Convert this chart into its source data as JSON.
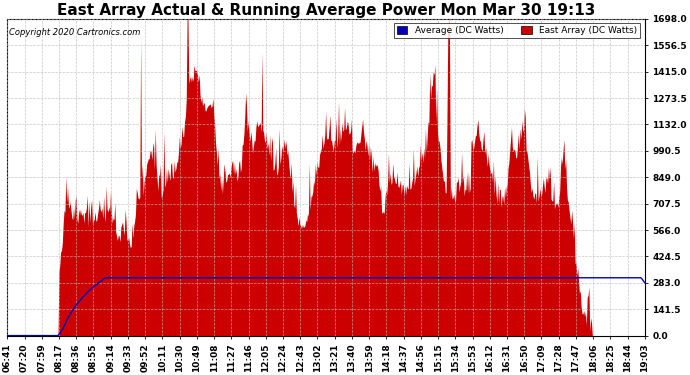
{
  "title": "East Array Actual & Running Average Power Mon Mar 30 19:13",
  "copyright": "Copyright 2020 Cartronics.com",
  "legend_labels": [
    "Average (DC Watts)",
    "East Array (DC Watts)"
  ],
  "legend_colors": [
    "#0000bb",
    "#cc0000"
  ],
  "ymin": 0.0,
  "ymax": 1698.0,
  "yticks": [
    0.0,
    141.5,
    283.0,
    424.5,
    566.0,
    707.5,
    849.0,
    990.5,
    1132.0,
    1273.5,
    1415.0,
    1556.5,
    1698.0
  ],
  "x_labels": [
    "06:41",
    "07:20",
    "07:59",
    "08:17",
    "08:36",
    "08:55",
    "09:14",
    "09:33",
    "09:52",
    "10:11",
    "10:30",
    "10:49",
    "11:08",
    "11:27",
    "11:46",
    "12:05",
    "12:24",
    "12:43",
    "13:02",
    "13:21",
    "13:40",
    "13:59",
    "14:18",
    "14:37",
    "14:56",
    "15:15",
    "15:34",
    "15:53",
    "16:12",
    "16:31",
    "16:50",
    "17:09",
    "17:28",
    "17:47",
    "18:06",
    "18:25",
    "18:44",
    "19:03"
  ],
  "background_color": "#ffffff",
  "plot_bg_color": "#ffffff",
  "grid_color": "#bbbbbb",
  "area_color": "#cc0000",
  "line_color": "#0000bb",
  "title_fontsize": 11,
  "tick_fontsize": 6.5
}
